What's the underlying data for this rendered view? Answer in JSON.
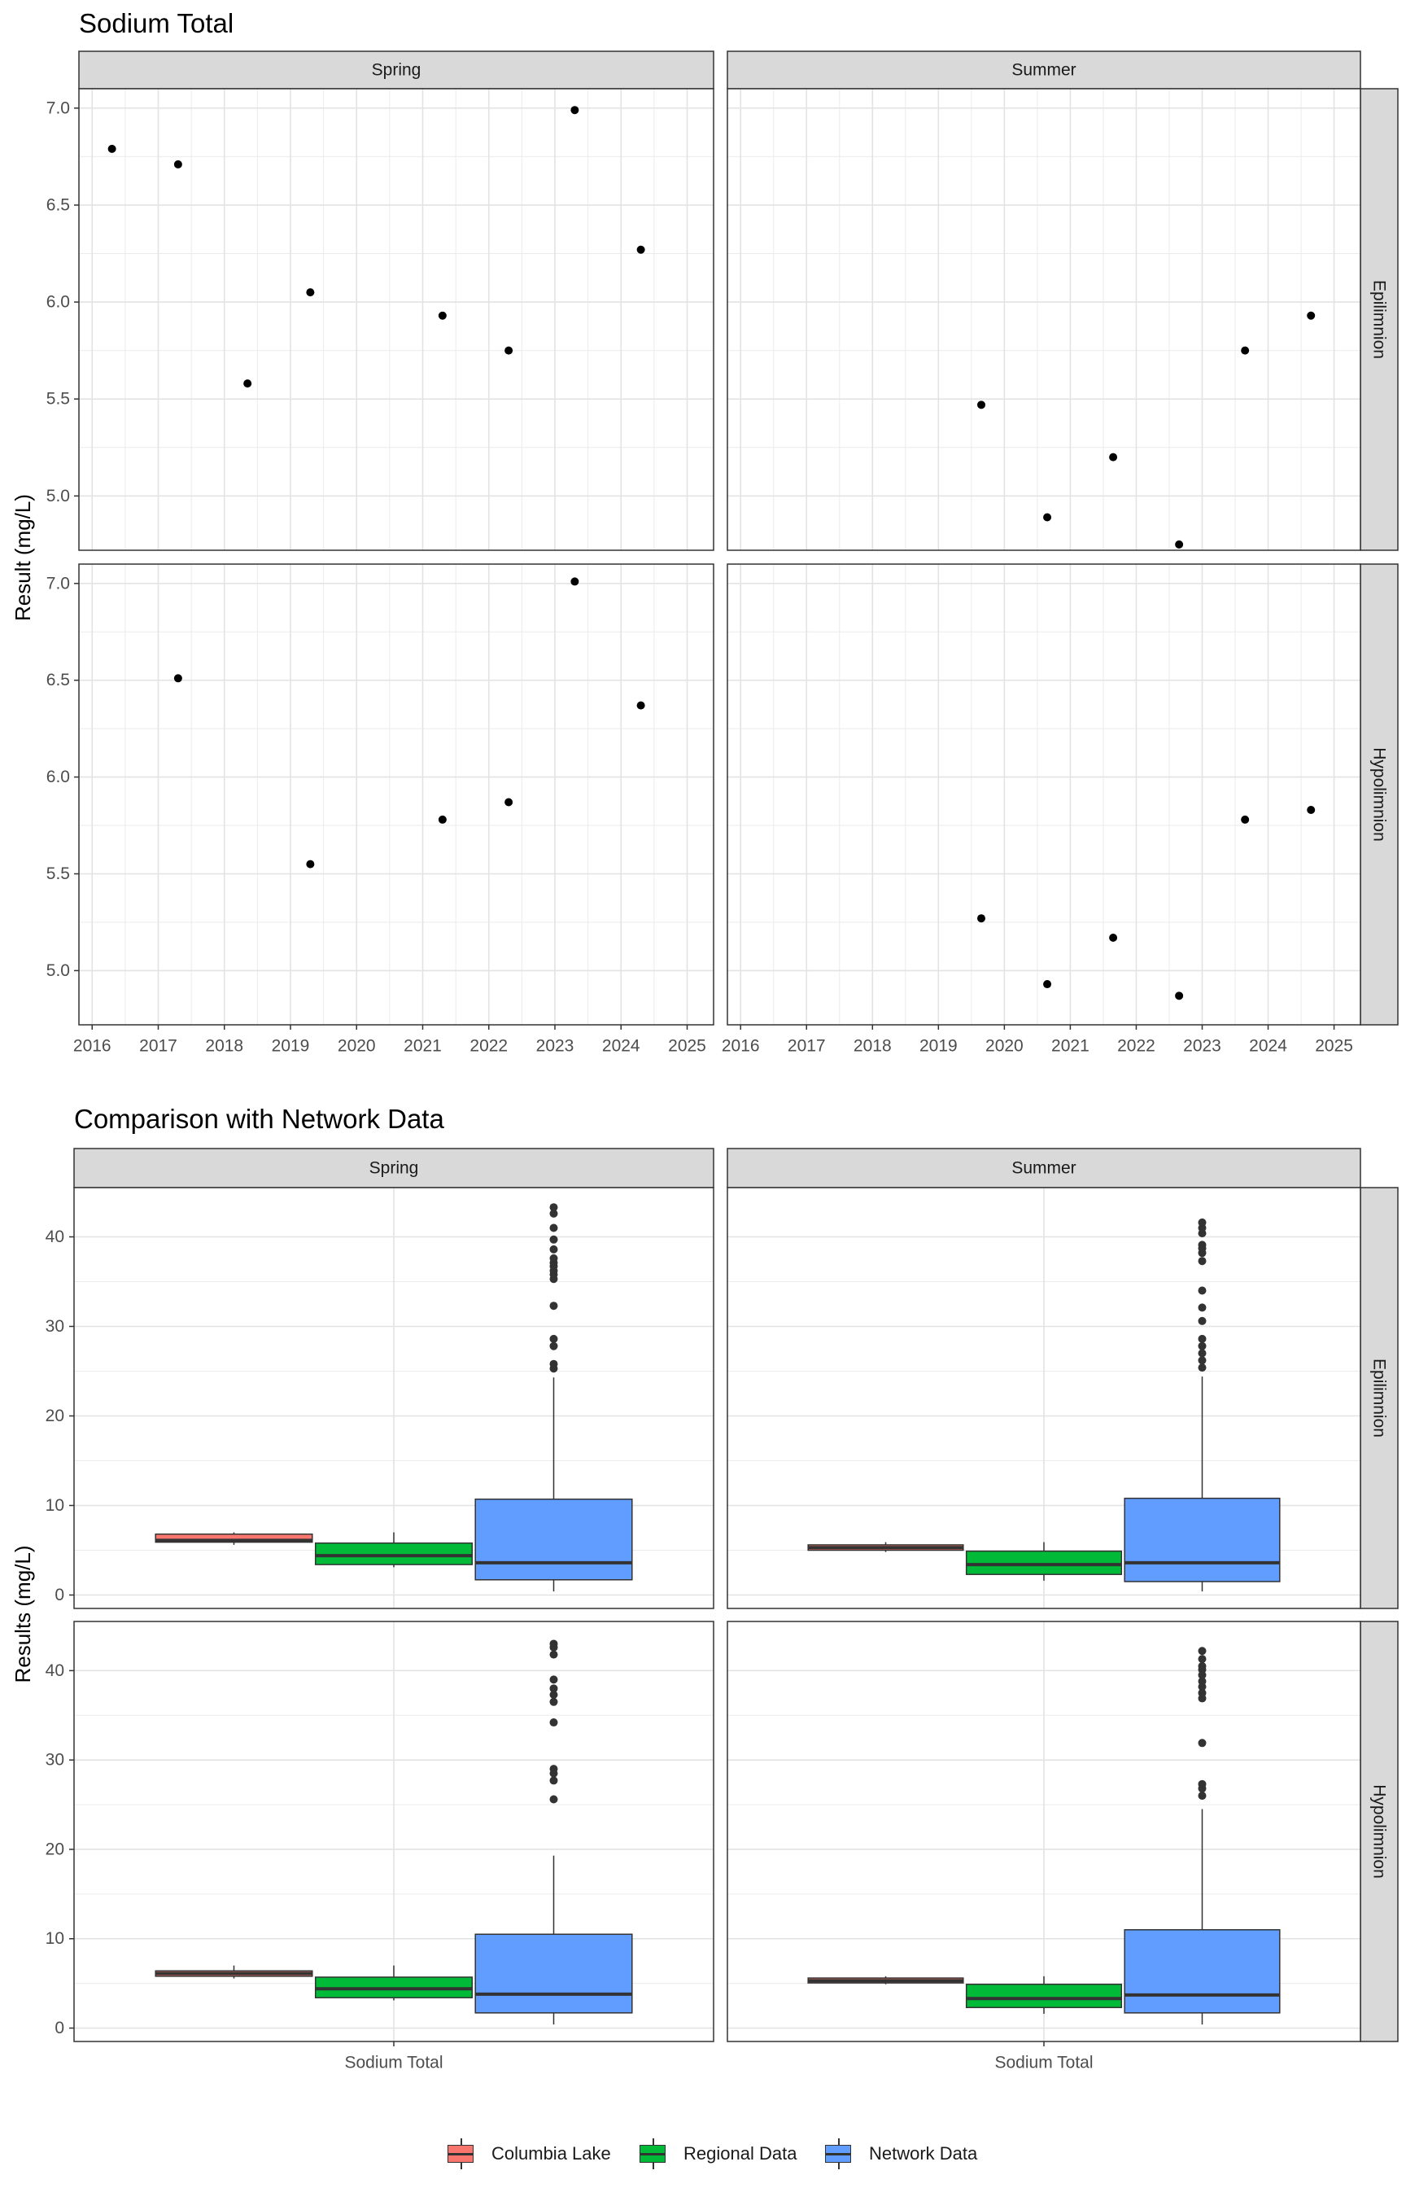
{
  "colors": {
    "columbia_lake": "#F8766D",
    "regional_data": "#00BA38",
    "network_data": "#619CFF",
    "strip_fill": "#D9D9D9",
    "point": "#000000"
  },
  "legend": {
    "items": [
      {
        "label": "Columbia Lake",
        "color": "#F8766D"
      },
      {
        "label": "Regional Data",
        "color": "#00BA38"
      },
      {
        "label": "Network Data",
        "color": "#619CFF"
      }
    ]
  },
  "chart_data": [
    {
      "type": "scatter",
      "title": "Sodium Total",
      "ylabel": "Result (mg/L)",
      "xlabel": "",
      "ylim": [
        4.72,
        7.1
      ],
      "xlim": [
        2015.8,
        2025.4
      ],
      "yticks": [
        "5.0",
        "5.5",
        "6.0",
        "6.5",
        "7.0"
      ],
      "xticks": [
        "2016",
        "2017",
        "2018",
        "2019",
        "2020",
        "2021",
        "2022",
        "2023",
        "2024",
        "2025"
      ],
      "facet_cols": [
        "Spring",
        "Summer"
      ],
      "facet_rows": [
        "Epilimnion",
        "Hypolimnion"
      ],
      "grid": true,
      "panels": [
        {
          "col": "Spring",
          "row": "Epilimnion",
          "points": [
            [
              2016.3,
              6.79
            ],
            [
              2017.3,
              6.71
            ],
            [
              2018.35,
              5.58
            ],
            [
              2019.3,
              6.05
            ],
            [
              2021.3,
              5.93
            ],
            [
              2022.3,
              5.75
            ],
            [
              2023.3,
              6.99
            ],
            [
              2024.3,
              6.27
            ]
          ]
        },
        {
          "col": "Summer",
          "row": "Epilimnion",
          "points": [
            [
              2019.65,
              5.47
            ],
            [
              2020.65,
              4.89
            ],
            [
              2021.65,
              5.2
            ],
            [
              2022.65,
              4.75
            ],
            [
              2023.65,
              5.75
            ],
            [
              2024.65,
              5.93
            ]
          ]
        },
        {
          "col": "Spring",
          "row": "Hypolimnion",
          "points": [
            [
              2017.3,
              6.51
            ],
            [
              2019.3,
              5.55
            ],
            [
              2021.3,
              5.78
            ],
            [
              2022.3,
              5.87
            ],
            [
              2023.3,
              7.01
            ],
            [
              2024.3,
              6.37
            ]
          ]
        },
        {
          "col": "Summer",
          "row": "Hypolimnion",
          "points": [
            [
              2019.65,
              5.27
            ],
            [
              2020.65,
              4.93
            ],
            [
              2021.65,
              5.17
            ],
            [
              2022.65,
              4.87
            ],
            [
              2023.65,
              5.78
            ],
            [
              2024.65,
              5.83
            ]
          ]
        }
      ]
    },
    {
      "type": "box",
      "title": "Comparison with Network Data",
      "ylabel": "Results (mg/L)",
      "xlabel": "",
      "category": "Sodium Total",
      "ylim": [
        -1.5,
        45.5
      ],
      "yticks": [
        "0",
        "10",
        "20",
        "30",
        "40"
      ],
      "facet_cols": [
        "Spring",
        "Summer"
      ],
      "facet_rows": [
        "Epilimnion",
        "Hypolimnion"
      ],
      "series": [
        "Columbia Lake",
        "Regional Data",
        "Network Data"
      ],
      "grid": true,
      "legend_position": "bottom",
      "panels": [
        {
          "col": "Spring",
          "row": "Epilimnion",
          "boxes": [
            {
              "name": "Columbia Lake",
              "min": 5.6,
              "q1": 5.9,
              "median": 6.1,
              "q3": 6.8,
              "max": 7.0,
              "outliers": []
            },
            {
              "name": "Regional Data",
              "min": 3.1,
              "q1": 3.4,
              "median": 4.4,
              "q3": 5.8,
              "max": 7.0,
              "outliers": []
            },
            {
              "name": "Network Data",
              "min": 0.4,
              "q1": 1.7,
              "median": 3.6,
              "q3": 10.7,
              "max": 24.3,
              "outliers": [
                25.3,
                25.8,
                27.8,
                28.6,
                32.3,
                35.3,
                35.8,
                36.2,
                36.7,
                37.1,
                37.6,
                38.6,
                39.7,
                41.0,
                42.6,
                43.3
              ]
            }
          ]
        },
        {
          "col": "Summer",
          "row": "Epilimnion",
          "boxes": [
            {
              "name": "Columbia Lake",
              "min": 4.8,
              "q1": 5.0,
              "median": 5.3,
              "q3": 5.6,
              "max": 5.9,
              "outliers": []
            },
            {
              "name": "Regional Data",
              "min": 1.6,
              "q1": 2.3,
              "median": 3.4,
              "q3": 4.9,
              "max": 5.9,
              "outliers": []
            },
            {
              "name": "Network Data",
              "min": 0.4,
              "q1": 1.5,
              "median": 3.6,
              "q3": 10.8,
              "max": 24.4,
              "outliers": [
                25.4,
                26.2,
                27.0,
                27.8,
                28.6,
                30.6,
                32.1,
                34.0,
                37.3,
                38.2,
                38.7,
                39.1,
                40.4,
                41.0,
                41.6
              ]
            }
          ]
        },
        {
          "col": "Spring",
          "row": "Hypolimnion",
          "boxes": [
            {
              "name": "Columbia Lake",
              "min": 5.55,
              "q1": 5.8,
              "median": 6.1,
              "q3": 6.4,
              "max": 7.0,
              "outliers": []
            },
            {
              "name": "Regional Data",
              "min": 3.1,
              "q1": 3.4,
              "median": 4.4,
              "q3": 5.7,
              "max": 7.0,
              "outliers": []
            },
            {
              "name": "Network Data",
              "min": 0.4,
              "q1": 1.7,
              "median": 3.8,
              "q3": 10.5,
              "max": 19.3,
              "outliers": [
                25.6,
                27.7,
                28.5,
                29.0,
                34.2,
                36.5,
                37.3,
                38.0,
                39.0,
                41.8,
                42.6,
                43.0
              ]
            }
          ]
        },
        {
          "col": "Summer",
          "row": "Hypolimnion",
          "boxes": [
            {
              "name": "Columbia Lake",
              "min": 4.9,
              "q1": 5.05,
              "median": 5.3,
              "q3": 5.6,
              "max": 5.8,
              "outliers": []
            },
            {
              "name": "Regional Data",
              "min": 1.6,
              "q1": 2.3,
              "median": 3.3,
              "q3": 4.9,
              "max": 5.8,
              "outliers": []
            },
            {
              "name": "Network Data",
              "min": 0.4,
              "q1": 1.7,
              "median": 3.7,
              "q3": 11.0,
              "max": 24.5,
              "outliers": [
                26.0,
                26.8,
                27.3,
                31.9,
                36.9,
                37.5,
                38.2,
                38.8,
                39.5,
                40.1,
                40.5,
                41.3,
                42.2
              ]
            }
          ]
        }
      ]
    }
  ]
}
